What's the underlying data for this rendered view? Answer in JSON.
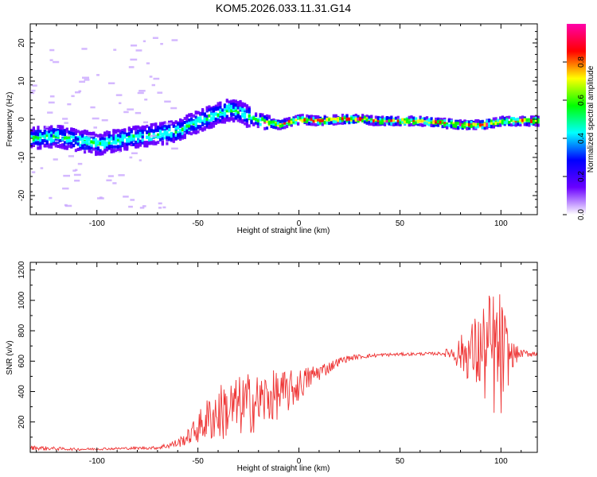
{
  "title": "KOM5.2026.033.11.31.G14",
  "chart_data": [
    {
      "type": "heatmap",
      "title": "KOM5.2026.033.11.31.G14",
      "xlabel": "Height of straight line (km)",
      "ylabel": "Frequency (Hz)",
      "xlim": [
        -133,
        118
      ],
      "ylim": [
        -25,
        25
      ],
      "xticks": [
        -100,
        -50,
        0,
        50,
        100
      ],
      "yticks": [
        -20,
        -10,
        0,
        10,
        20
      ],
      "ridge": {
        "x": [
          -133,
          -120,
          -110,
          -100,
          -90,
          -80,
          -70,
          -60,
          -55,
          -50,
          -45,
          -40,
          -35,
          -30,
          -25,
          -20,
          -10,
          0,
          10,
          20,
          30,
          40,
          50,
          60,
          70,
          80,
          90,
          100,
          110,
          118
        ],
        "frequency": [
          -5,
          -4.5,
          -5.5,
          -6.5,
          -5.5,
          -4.5,
          -4,
          -3,
          -1.5,
          -0.5,
          0.5,
          1.5,
          2.5,
          2,
          0.5,
          -0.5,
          -1.5,
          0,
          -0.5,
          0,
          0,
          -0.5,
          -0.5,
          -0.5,
          -1,
          -1.5,
          -1.5,
          -0.5,
          -0.5,
          -0.5
        ]
      },
      "colorbar": {
        "label": "Normalized spectral amplitude",
        "range": [
          0,
          1
        ],
        "ticks": [
          "0.0",
          "0.2",
          "0.4",
          "0.6",
          "0.8"
        ],
        "colors": [
          "#ffffff",
          "#6a00ff",
          "#0000ff",
          "#00ffff",
          "#00ff00",
          "#ffff00",
          "#ff0000",
          "#ff00aa"
        ]
      }
    },
    {
      "type": "line",
      "xlabel": "Height of straight line (km)",
      "ylabel": "SNR (v/v)",
      "xlim": [
        -133,
        118
      ],
      "ylim": [
        0,
        1250
      ],
      "xticks": [
        -100,
        -50,
        0,
        50,
        100
      ],
      "yticks": [
        200,
        400,
        600,
        800,
        1000,
        1200
      ],
      "color": "#ee3333",
      "trend": {
        "x": [
          -133,
          -110,
          -90,
          -70,
          -60,
          -55,
          -50,
          -45,
          -40,
          -35,
          -30,
          -25,
          -20,
          -15,
          -10,
          -5,
          0,
          5,
          10,
          15,
          20,
          25,
          30,
          40,
          50,
          60,
          70,
          75,
          80,
          85,
          90,
          95,
          100,
          105,
          110,
          118
        ],
        "y": [
          30,
          20,
          25,
          30,
          60,
          100,
          160,
          220,
          260,
          280,
          300,
          320,
          330,
          360,
          380,
          400,
          440,
          490,
          530,
          560,
          600,
          620,
          630,
          640,
          645,
          648,
          650,
          655,
          650,
          655,
          660,
          660,
          620,
          640,
          650,
          650
        ]
      },
      "noise_amplitude": {
        "x": [
          -133,
          -110,
          -90,
          -70,
          -60,
          -55,
          -50,
          -45,
          -40,
          -35,
          -30,
          -25,
          -20,
          -15,
          -10,
          -5,
          0,
          5,
          10,
          15,
          20,
          25,
          30,
          40,
          50,
          60,
          70,
          75,
          80,
          85,
          90,
          95,
          100,
          105,
          110,
          118
        ],
        "y": [
          15,
          8,
          8,
          10,
          30,
          50,
          100,
          150,
          190,
          200,
          200,
          210,
          190,
          180,
          160,
          140,
          110,
          80,
          60,
          40,
          25,
          20,
          15,
          12,
          10,
          10,
          10,
          40,
          120,
          200,
          300,
          420,
          450,
          100,
          25,
          20
        ]
      }
    }
  ]
}
